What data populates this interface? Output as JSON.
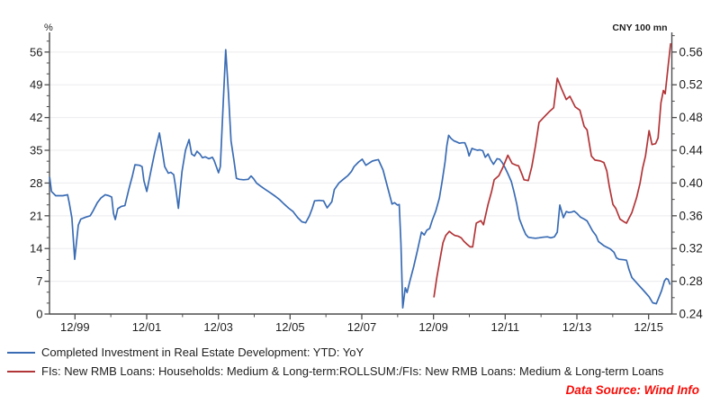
{
  "chart_data": {
    "type": "line",
    "title": "",
    "grid": "horizontal-majors-on",
    "legend_position": "bottom-left",
    "colors": {
      "blue_series": "#3a6cb4",
      "red_series": "#b23538",
      "gridline": "#ececef",
      "axis": "#4d4d4f",
      "text": "#1f1f1f",
      "data_source": "#f90b06"
    },
    "x_axis": {
      "range": [
        1999.206,
        2016.565
      ],
      "major_ticks": [
        {
          "t": 1999.9167,
          "label": "12/99"
        },
        {
          "t": 2001.9167,
          "label": "12/01"
        },
        {
          "t": 2003.9167,
          "label": "12/03"
        },
        {
          "t": 2005.9167,
          "label": "12/05"
        },
        {
          "t": 2007.9167,
          "label": "12/07"
        },
        {
          "t": 2009.9167,
          "label": "12/09"
        },
        {
          "t": 2011.9167,
          "label": "12/11"
        },
        {
          "t": 2013.9167,
          "label": "12/13"
        },
        {
          "t": 2015.9167,
          "label": "12/15"
        }
      ],
      "minor_ticks": [
        2000.9167,
        2002.9167,
        2004.9167,
        2006.9167,
        2008.9167,
        2010.9167,
        2012.9167,
        2014.9167
      ]
    },
    "left_axis": {
      "unit": "%",
      "range": [
        0,
        60.2
      ],
      "major_ticks": [
        0,
        7,
        14,
        21,
        28,
        35,
        42,
        49,
        56
      ],
      "minor_step": 2.3333
    },
    "right_axis": {
      "unit": "CNY 100 mn",
      "range": [
        0.24,
        0.584
      ],
      "major_ticks": [
        0.24,
        0.28,
        0.32,
        0.36,
        0.4,
        0.44,
        0.48,
        0.52,
        0.56
      ],
      "minor_step": 0.02
    },
    "series": [
      {
        "name": "Completed Investment in Real Estate Development: YTD: YoY",
        "axis": "left",
        "color": "#3a6cb4",
        "points": [
          [
            1999.21,
            29.2
          ],
          [
            1999.26,
            26.2
          ],
          [
            1999.38,
            25.3
          ],
          [
            1999.58,
            25.3
          ],
          [
            1999.71,
            25.5
          ],
          [
            1999.76,
            23.6
          ],
          [
            1999.83,
            20.5
          ],
          [
            1999.91,
            11.7
          ],
          [
            2000.01,
            19.0
          ],
          [
            2000.08,
            20.3
          ],
          [
            2000.21,
            20.7
          ],
          [
            2000.34,
            21.0
          ],
          [
            2000.41,
            21.9
          ],
          [
            2000.54,
            23.8
          ],
          [
            2000.64,
            24.8
          ],
          [
            2000.76,
            25.5
          ],
          [
            2000.86,
            25.3
          ],
          [
            2000.94,
            25.0
          ],
          [
            2000.99,
            21.5
          ],
          [
            2001.04,
            20.2
          ],
          [
            2001.11,
            22.5
          ],
          [
            2001.21,
            23.0
          ],
          [
            2001.31,
            23.2
          ],
          [
            2001.42,
            26.7
          ],
          [
            2001.52,
            29.6
          ],
          [
            2001.59,
            31.9
          ],
          [
            2001.72,
            31.8
          ],
          [
            2001.79,
            31.5
          ],
          [
            2001.84,
            28.5
          ],
          [
            2001.92,
            26.2
          ],
          [
            2002.04,
            30.8
          ],
          [
            2002.14,
            34.5
          ],
          [
            2002.27,
            38.7
          ],
          [
            2002.34,
            35.5
          ],
          [
            2002.42,
            31.5
          ],
          [
            2002.52,
            30.1
          ],
          [
            2002.59,
            30.3
          ],
          [
            2002.67,
            29.8
          ],
          [
            2002.72,
            27.3
          ],
          [
            2002.8,
            22.6
          ],
          [
            2002.9,
            30.4
          ],
          [
            2003.0,
            35.0
          ],
          [
            2003.1,
            37.3
          ],
          [
            2003.17,
            34.2
          ],
          [
            2003.25,
            33.8
          ],
          [
            2003.32,
            34.8
          ],
          [
            2003.4,
            34.2
          ],
          [
            2003.47,
            33.4
          ],
          [
            2003.55,
            33.6
          ],
          [
            2003.65,
            33.2
          ],
          [
            2003.75,
            33.5
          ],
          [
            2003.8,
            32.8
          ],
          [
            2003.92,
            30.2
          ],
          [
            2003.97,
            31.5
          ],
          [
            2004.05,
            45.0
          ],
          [
            2004.12,
            56.5
          ],
          [
            2004.2,
            47.0
          ],
          [
            2004.27,
            37.0
          ],
          [
            2004.35,
            32.9
          ],
          [
            2004.42,
            29.0
          ],
          [
            2004.5,
            28.8
          ],
          [
            2004.62,
            28.7
          ],
          [
            2004.75,
            28.8
          ],
          [
            2004.83,
            29.5
          ],
          [
            2004.9,
            28.9
          ],
          [
            2004.98,
            28.0
          ],
          [
            2005.1,
            27.3
          ],
          [
            2005.23,
            26.6
          ],
          [
            2005.35,
            26.0
          ],
          [
            2005.5,
            25.2
          ],
          [
            2005.63,
            24.4
          ],
          [
            2005.75,
            23.5
          ],
          [
            2005.88,
            22.6
          ],
          [
            2006.0,
            21.9
          ],
          [
            2006.13,
            20.6
          ],
          [
            2006.25,
            19.7
          ],
          [
            2006.35,
            19.5
          ],
          [
            2006.45,
            20.9
          ],
          [
            2006.53,
            22.5
          ],
          [
            2006.6,
            24.2
          ],
          [
            2006.73,
            24.3
          ],
          [
            2006.85,
            24.2
          ],
          [
            2006.95,
            22.7
          ],
          [
            2007.08,
            24.0
          ],
          [
            2007.15,
            26.6
          ],
          [
            2007.28,
            28.0
          ],
          [
            2007.4,
            28.8
          ],
          [
            2007.53,
            29.6
          ],
          [
            2007.63,
            30.5
          ],
          [
            2007.7,
            31.5
          ],
          [
            2007.83,
            32.5
          ],
          [
            2007.93,
            33.1
          ],
          [
            2008.03,
            31.8
          ],
          [
            2008.11,
            32.2
          ],
          [
            2008.21,
            32.7
          ],
          [
            2008.31,
            32.9
          ],
          [
            2008.38,
            33.0
          ],
          [
            2008.51,
            30.8
          ],
          [
            2008.63,
            27.3
          ],
          [
            2008.76,
            23.5
          ],
          [
            2008.83,
            23.8
          ],
          [
            2008.91,
            23.3
          ],
          [
            2008.96,
            23.4
          ],
          [
            2009.01,
            15.0
          ],
          [
            2009.06,
            1.3
          ],
          [
            2009.13,
            5.6
          ],
          [
            2009.18,
            4.6
          ],
          [
            2009.26,
            7.1
          ],
          [
            2009.36,
            10.0
          ],
          [
            2009.46,
            13.3
          ],
          [
            2009.58,
            17.5
          ],
          [
            2009.66,
            16.9
          ],
          [
            2009.73,
            17.9
          ],
          [
            2009.81,
            18.3
          ],
          [
            2009.88,
            20.0
          ],
          [
            2009.98,
            22.0
          ],
          [
            2010.08,
            24.8
          ],
          [
            2010.16,
            28.5
          ],
          [
            2010.24,
            32.5
          ],
          [
            2010.29,
            36.0
          ],
          [
            2010.34,
            38.2
          ],
          [
            2010.41,
            37.5
          ],
          [
            2010.49,
            37.0
          ],
          [
            2010.56,
            36.8
          ],
          [
            2010.64,
            36.5
          ],
          [
            2010.71,
            36.6
          ],
          [
            2010.79,
            36.6
          ],
          [
            2010.86,
            35.3
          ],
          [
            2010.91,
            33.8
          ],
          [
            2010.99,
            35.4
          ],
          [
            2011.06,
            35.2
          ],
          [
            2011.14,
            35.0
          ],
          [
            2011.21,
            35.1
          ],
          [
            2011.29,
            34.9
          ],
          [
            2011.36,
            33.5
          ],
          [
            2011.44,
            34.2
          ],
          [
            2011.51,
            33.0
          ],
          [
            2011.59,
            32.0
          ],
          [
            2011.69,
            33.2
          ],
          [
            2011.76,
            33.1
          ],
          [
            2011.84,
            32.3
          ],
          [
            2011.91,
            31.3
          ],
          [
            2011.99,
            30.0
          ],
          [
            2012.09,
            28.3
          ],
          [
            2012.16,
            26.2
          ],
          [
            2012.24,
            23.5
          ],
          [
            2012.31,
            20.4
          ],
          [
            2012.41,
            18.4
          ],
          [
            2012.49,
            17.0
          ],
          [
            2012.56,
            16.4
          ],
          [
            2012.66,
            16.3
          ],
          [
            2012.76,
            16.2
          ],
          [
            2012.86,
            16.3
          ],
          [
            2012.96,
            16.4
          ],
          [
            2013.09,
            16.5
          ],
          [
            2013.19,
            16.3
          ],
          [
            2013.29,
            16.5
          ],
          [
            2013.37,
            17.5
          ],
          [
            2013.44,
            23.3
          ],
          [
            2013.54,
            20.6
          ],
          [
            2013.62,
            21.9
          ],
          [
            2013.69,
            21.7
          ],
          [
            2013.77,
            21.8
          ],
          [
            2013.84,
            22.0
          ],
          [
            2013.92,
            21.5
          ],
          [
            2014.02,
            20.7
          ],
          [
            2014.12,
            20.3
          ],
          [
            2014.2,
            19.9
          ],
          [
            2014.35,
            17.8
          ],
          [
            2014.45,
            16.8
          ],
          [
            2014.52,
            15.5
          ],
          [
            2014.67,
            14.6
          ],
          [
            2014.85,
            13.9
          ],
          [
            2014.95,
            13.2
          ],
          [
            2015.02,
            12.0
          ],
          [
            2015.1,
            11.7
          ],
          [
            2015.22,
            11.6
          ],
          [
            2015.3,
            11.5
          ],
          [
            2015.37,
            9.5
          ],
          [
            2015.45,
            7.8
          ],
          [
            2015.6,
            6.5
          ],
          [
            2015.78,
            5.0
          ],
          [
            2015.93,
            3.7
          ],
          [
            2016.03,
            2.4
          ],
          [
            2016.13,
            2.2
          ],
          [
            2016.2,
            3.5
          ],
          [
            2016.28,
            5.0
          ],
          [
            2016.36,
            7.1
          ],
          [
            2016.41,
            7.6
          ],
          [
            2016.46,
            7.4
          ],
          [
            2016.51,
            6.4
          ]
        ]
      },
      {
        "name": "FIs: New RMB Loans: Households: Medium & Long-term:ROLLSUM:/FIs: New RMB Loans: Medium & Long-term Loans",
        "axis": "right",
        "color": "#b23538",
        "points": [
          [
            2009.93,
            0.261
          ],
          [
            2010.01,
            0.285
          ],
          [
            2010.11,
            0.31
          ],
          [
            2010.18,
            0.327
          ],
          [
            2010.26,
            0.336
          ],
          [
            2010.36,
            0.341
          ],
          [
            2010.44,
            0.338
          ],
          [
            2010.51,
            0.336
          ],
          [
            2010.61,
            0.335
          ],
          [
            2010.69,
            0.333
          ],
          [
            2010.76,
            0.329
          ],
          [
            2010.86,
            0.325
          ],
          [
            2010.94,
            0.322
          ],
          [
            2011.01,
            0.322
          ],
          [
            2011.11,
            0.351
          ],
          [
            2011.24,
            0.354
          ],
          [
            2011.31,
            0.349
          ],
          [
            2011.44,
            0.374
          ],
          [
            2011.54,
            0.39
          ],
          [
            2011.61,
            0.404
          ],
          [
            2011.74,
            0.409
          ],
          [
            2011.86,
            0.42
          ],
          [
            2011.99,
            0.434
          ],
          [
            2012.11,
            0.424
          ],
          [
            2012.21,
            0.422
          ],
          [
            2012.29,
            0.421
          ],
          [
            2012.39,
            0.41
          ],
          [
            2012.44,
            0.404
          ],
          [
            2012.56,
            0.403
          ],
          [
            2012.66,
            0.42
          ],
          [
            2012.76,
            0.445
          ],
          [
            2012.86,
            0.474
          ],
          [
            2013.01,
            0.481
          ],
          [
            2013.14,
            0.487
          ],
          [
            2013.27,
            0.492
          ],
          [
            2013.37,
            0.528
          ],
          [
            2013.49,
            0.515
          ],
          [
            2013.62,
            0.502
          ],
          [
            2013.72,
            0.506
          ],
          [
            2013.87,
            0.493
          ],
          [
            2014.0,
            0.489
          ],
          [
            2014.12,
            0.469
          ],
          [
            2014.2,
            0.465
          ],
          [
            2014.32,
            0.433
          ],
          [
            2014.42,
            0.428
          ],
          [
            2014.57,
            0.427
          ],
          [
            2014.67,
            0.425
          ],
          [
            2014.75,
            0.415
          ],
          [
            2014.82,
            0.396
          ],
          [
            2014.92,
            0.374
          ],
          [
            2015.0,
            0.369
          ],
          [
            2015.12,
            0.356
          ],
          [
            2015.22,
            0.353
          ],
          [
            2015.3,
            0.351
          ],
          [
            2015.45,
            0.364
          ],
          [
            2015.58,
            0.382
          ],
          [
            2015.68,
            0.4
          ],
          [
            2015.75,
            0.418
          ],
          [
            2015.83,
            0.433
          ],
          [
            2015.93,
            0.464
          ],
          [
            2016.01,
            0.447
          ],
          [
            2016.11,
            0.448
          ],
          [
            2016.18,
            0.455
          ],
          [
            2016.26,
            0.498
          ],
          [
            2016.33,
            0.513
          ],
          [
            2016.38,
            0.509
          ],
          [
            2016.46,
            0.542
          ],
          [
            2016.53,
            0.57
          ]
        ]
      }
    ],
    "footer": {
      "data_source": "Data Source: Wind Info"
    }
  }
}
